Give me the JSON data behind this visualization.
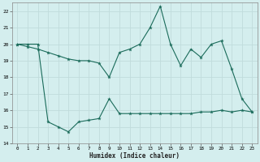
{
  "xlabel": "Humidex (Indice chaleur)",
  "line1_x": [
    0,
    1,
    2,
    3,
    4,
    5,
    6,
    7,
    8,
    9,
    10,
    11,
    12,
    13,
    14,
    15,
    16,
    17,
    18,
    19,
    20,
    21,
    22,
    23
  ],
  "line1_y": [
    20.0,
    19.85,
    19.7,
    19.5,
    19.3,
    19.1,
    19.0,
    19.0,
    18.85,
    18.0,
    19.5,
    19.7,
    20.0,
    21.0,
    22.3,
    20.0,
    18.7,
    19.7,
    19.2,
    20.0,
    20.2,
    18.5,
    16.7,
    15.9
  ],
  "line2_x": [
    0,
    1,
    2,
    3,
    4,
    5,
    6,
    7,
    8,
    9,
    10,
    11,
    12,
    13,
    14,
    15,
    16,
    17,
    18,
    19,
    20,
    21,
    22,
    23
  ],
  "line2_y": [
    20.0,
    20.0,
    20.0,
    15.3,
    15.0,
    14.7,
    15.3,
    15.4,
    15.5,
    16.7,
    15.8,
    15.8,
    15.8,
    15.8,
    15.8,
    15.8,
    15.8,
    15.8,
    15.9,
    15.9,
    16.0,
    15.9,
    16.0,
    15.9
  ],
  "line_color": "#1a6b5a",
  "bg_color": "#d4eeee",
  "grid_color": "#c0dcdc",
  "ylim": [
    14,
    22.5
  ],
  "yticks": [
    14,
    15,
    16,
    17,
    18,
    19,
    20,
    21,
    22
  ],
  "xticks": [
    0,
    1,
    2,
    3,
    4,
    5,
    6,
    7,
    8,
    9,
    10,
    11,
    12,
    13,
    14,
    15,
    16,
    17,
    18,
    19,
    20,
    21,
    22,
    23
  ],
  "marker": "*",
  "markersize": 3.5,
  "linewidth": 0.8
}
